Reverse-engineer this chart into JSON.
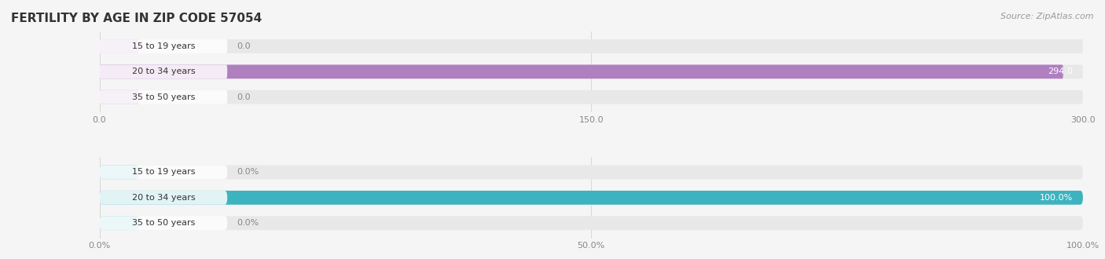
{
  "title": "FERTILITY BY AGE IN ZIP CODE 57054",
  "source": "Source: ZipAtlas.com",
  "label_color_outside": "#888888",
  "top_chart": {
    "categories": [
      "15 to 19 years",
      "20 to 34 years",
      "35 to 50 years"
    ],
    "values": [
      0.0,
      294.0,
      0.0
    ],
    "xlim": [
      0,
      300.0
    ],
    "xticks": [
      0.0,
      150.0,
      300.0
    ],
    "xtick_labels": [
      "0.0",
      "150.0",
      "300.0"
    ],
    "bar_color": "#b07fc0",
    "bar_color_small": "#c9a8d4",
    "label_color_inside": "#ffffff"
  },
  "bottom_chart": {
    "categories": [
      "15 to 19 years",
      "20 to 34 years",
      "35 to 50 years"
    ],
    "values": [
      0.0,
      100.0,
      0.0
    ],
    "xlim": [
      0,
      100.0
    ],
    "xticks": [
      0.0,
      50.0,
      100.0
    ],
    "xtick_labels": [
      "0.0%",
      "50.0%",
      "100.0%"
    ],
    "bar_color": "#3db3c0",
    "bar_color_small": "#7dd0d8",
    "label_color_inside": "#ffffff"
  },
  "background_color": "#f5f5f5",
  "bar_bg_color": "#e8e8e8",
  "title_color": "#333333",
  "source_color": "#999999",
  "title_fontsize": 11,
  "source_fontsize": 8,
  "tick_fontsize": 8,
  "bar_label_fontsize": 8,
  "category_fontsize": 8,
  "bar_height": 0.55
}
